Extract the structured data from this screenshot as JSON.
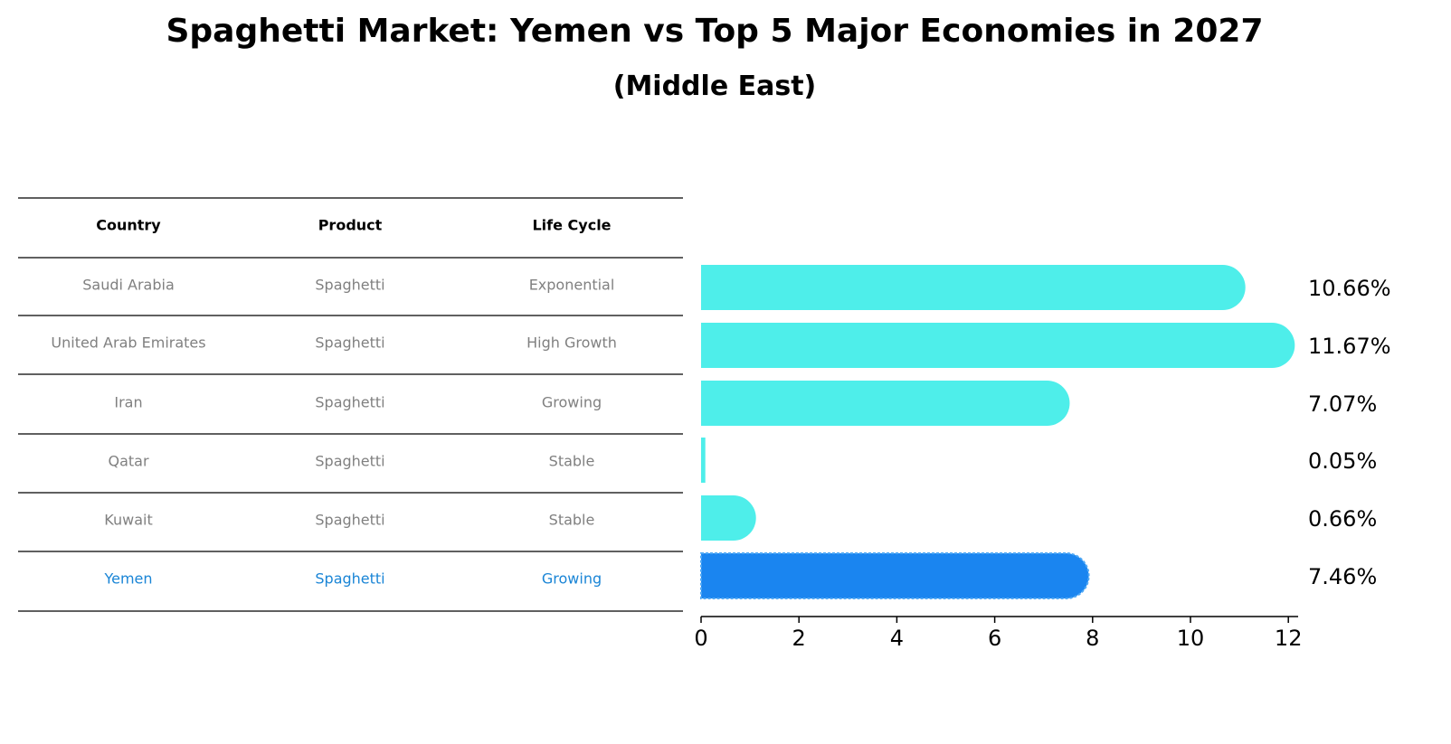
{
  "title": "Spaghetti Market: Yemen vs Top 5 Major Economies in 2027",
  "subtitle": "(Middle East)",
  "colors": {
    "bar": "#4EEEEA",
    "highlight": "#1A85F0",
    "muted_text": "#808080",
    "highlight_text": "#1A85D6"
  },
  "table": {
    "headers": [
      "Country",
      "Product",
      "Life Cycle"
    ],
    "rows": [
      [
        "Saudi Arabia",
        "Spaghetti",
        "Exponential"
      ],
      [
        "United Arab Emirates",
        "Spaghetti",
        "High Growth"
      ],
      [
        "Iran",
        "Spaghetti",
        "Growing"
      ],
      [
        "Qatar",
        "Spaghetti",
        "Stable"
      ],
      [
        "Kuwait",
        "Spaghetti",
        "Stable"
      ],
      [
        "Yemen",
        "Spaghetti",
        "Growing"
      ]
    ],
    "highlight_row": 5
  },
  "chart_data": {
    "type": "bar",
    "orientation": "horizontal",
    "categories": [
      "Saudi Arabia",
      "United Arab Emirates",
      "Iran",
      "Qatar",
      "Kuwait",
      "Yemen"
    ],
    "values": [
      10.66,
      11.67,
      7.07,
      0.05,
      0.66,
      7.46
    ],
    "value_labels": [
      "10.66%",
      "11.67%",
      "7.07%",
      "0.05%",
      "0.66%",
      "7.46%"
    ],
    "highlight": "Yemen",
    "xlim": [
      0,
      12.2
    ],
    "xticks": [
      0,
      2,
      4,
      6,
      8,
      10,
      12
    ],
    "xlabel": "",
    "ylabel": "",
    "grid": false
  }
}
